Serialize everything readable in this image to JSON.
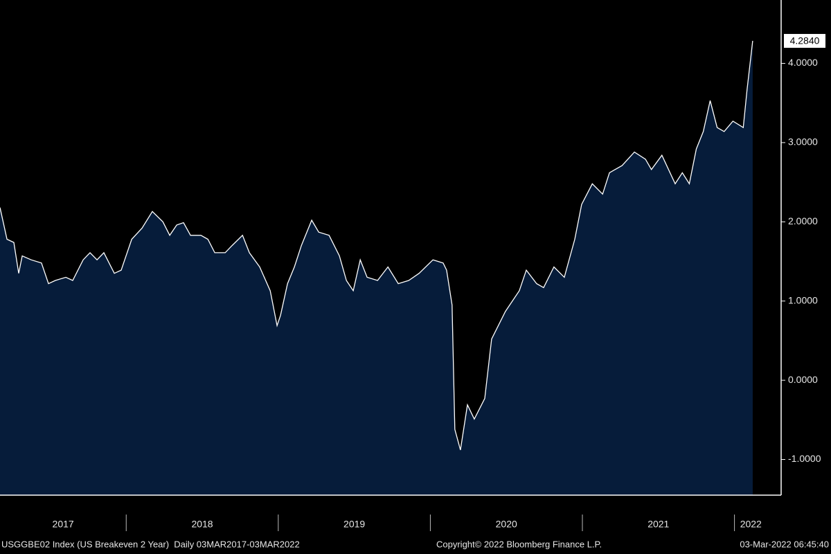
{
  "chart_data": {
    "type": "area",
    "x": [
      2017.17,
      2017.216,
      2017.261,
      2017.293,
      2017.316,
      2017.375,
      2017.443,
      2017.489,
      2017.534,
      2017.603,
      2017.648,
      2017.717,
      2017.762,
      2017.808,
      2017.853,
      2017.922,
      2017.967,
      2018.036,
      2018.104,
      2018.172,
      2018.241,
      2018.286,
      2018.332,
      2018.377,
      2018.423,
      2018.491,
      2018.537,
      2018.582,
      2018.651,
      2018.696,
      2018.765,
      2018.81,
      2018.878,
      2018.947,
      2018.992,
      2019.015,
      2019.061,
      2019.106,
      2019.152,
      2019.22,
      2019.266,
      2019.334,
      2019.402,
      2019.448,
      2019.493,
      2019.539,
      2019.584,
      2019.653,
      2019.721,
      2019.789,
      2019.858,
      2019.926,
      2020.017,
      2020.084,
      2020.107,
      2020.143,
      2020.161,
      2020.198,
      2020.244,
      2020.289,
      2020.358,
      2020.403,
      2020.494,
      2020.585,
      2020.631,
      2020.699,
      2020.745,
      2020.813,
      2020.881,
      2020.95,
      2020.995,
      2021.065,
      2021.133,
      2021.178,
      2021.261,
      2021.342,
      2021.415,
      2021.454,
      2021.523,
      2021.61,
      2021.657,
      2021.703,
      2021.749,
      2021.795,
      2021.84,
      2021.886,
      2021.932,
      2021.99,
      2022.058,
      2022.083,
      2022.12
    ],
    "series": [
      {
        "name": "USGGBE02 Index (US Breakeven 2 Year)",
        "color": "#ffffff",
        "fill": "#061c3a",
        "values": [
          2.18,
          1.78,
          1.74,
          1.35,
          1.57,
          1.52,
          1.48,
          1.22,
          1.26,
          1.3,
          1.26,
          1.52,
          1.61,
          1.52,
          1.61,
          1.35,
          1.39,
          1.78,
          1.92,
          2.13,
          2.0,
          1.83,
          1.96,
          1.99,
          1.83,
          1.83,
          1.78,
          1.61,
          1.61,
          1.7,
          1.83,
          1.61,
          1.43,
          1.13,
          0.69,
          0.82,
          1.22,
          1.43,
          1.7,
          2.02,
          1.87,
          1.83,
          1.57,
          1.26,
          1.13,
          1.52,
          1.3,
          1.26,
          1.43,
          1.22,
          1.26,
          1.35,
          1.52,
          1.48,
          1.39,
          0.95,
          -0.62,
          -0.88,
          -0.31,
          -0.49,
          -0.23,
          0.52,
          0.87,
          1.13,
          1.39,
          1.22,
          1.17,
          1.43,
          1.3,
          1.78,
          2.22,
          2.48,
          2.35,
          2.62,
          2.71,
          2.88,
          2.79,
          2.66,
          2.84,
          2.48,
          2.62,
          2.48,
          2.92,
          3.14,
          3.53,
          3.19,
          3.14,
          3.27,
          3.19,
          3.67,
          4.284
        ],
        "last_label": "4.2840"
      }
    ],
    "xlim": [
      2017.17,
      2022.307
    ],
    "xticks": [
      2018,
      2019,
      2020,
      2021,
      2022
    ],
    "period_labels": [
      "2017",
      "2018",
      "2019",
      "2020",
      "2021",
      "2022"
    ],
    "ylim": [
      -1.45,
      4.8
    ],
    "yticks": [
      {
        "value": -1,
        "label": "-1.0000"
      },
      {
        "value": 0,
        "label": "0.0000"
      },
      {
        "value": 1,
        "label": "1.0000"
      },
      {
        "value": 2,
        "label": "2.0000"
      },
      {
        "value": 3,
        "label": "3.0000"
      },
      {
        "value": 4,
        "label": "4.0000"
      }
    ],
    "footer": {
      "left": "USGGBE02 Index (US Breakeven 2 Year)  Daily 03MAR2017-03MAR2022",
      "center": "Copyright© 2022 Bloomberg Finance L.P.",
      "right": "03-Mar-2022 06:45:40"
    }
  }
}
